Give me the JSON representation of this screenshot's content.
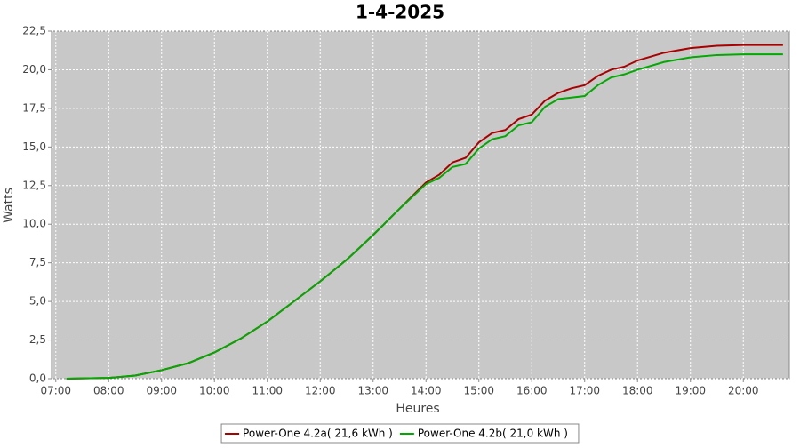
{
  "chart_data": {
    "type": "line",
    "title": "1-4-2025",
    "x_label": "Heures",
    "y_label": "Watts",
    "x": [
      7.2,
      8.0,
      8.5,
      9.0,
      9.5,
      10.0,
      10.5,
      11.0,
      11.5,
      12.0,
      12.5,
      13.0,
      13.5,
      14.0,
      14.25,
      14.5,
      14.75,
      15.0,
      15.25,
      15.5,
      15.75,
      16.0,
      16.25,
      16.5,
      16.75,
      17.0,
      17.25,
      17.5,
      17.75,
      18.0,
      18.5,
      19.0,
      19.5,
      20.0,
      20.75
    ],
    "series": [
      {
        "name": "Power-One 4.2a( 21,6 kWh )",
        "color": "#aa0000",
        "values": [
          0,
          0.05,
          0.2,
          0.55,
          1.0,
          1.7,
          2.6,
          3.7,
          5.0,
          6.3,
          7.7,
          9.3,
          11.0,
          12.7,
          13.2,
          14.0,
          14.3,
          15.3,
          15.9,
          16.1,
          16.8,
          17.1,
          18.0,
          18.5,
          18.8,
          19.0,
          19.6,
          20.0,
          20.2,
          20.6,
          21.1,
          21.4,
          21.55,
          21.6,
          21.6
        ]
      },
      {
        "name": "Power-One 4.2b( 21,0 kWh )",
        "color": "#00aa00",
        "values": [
          0,
          0.05,
          0.2,
          0.55,
          1.0,
          1.7,
          2.6,
          3.7,
          5.0,
          6.3,
          7.7,
          9.3,
          11.0,
          12.6,
          13.0,
          13.7,
          13.9,
          14.9,
          15.5,
          15.7,
          16.4,
          16.6,
          17.6,
          18.1,
          18.2,
          18.3,
          19.0,
          19.5,
          19.7,
          20.0,
          20.5,
          20.8,
          20.95,
          21.0,
          21.0
        ]
      }
    ],
    "xlim": [
      6.92,
      20.87
    ],
    "xticks": [
      {
        "value": 7,
        "label": "07:00"
      },
      {
        "value": 8,
        "label": "08:00"
      },
      {
        "value": 9,
        "label": "09:00"
      },
      {
        "value": 10,
        "label": "10:00"
      },
      {
        "value": 11,
        "label": "11:00"
      },
      {
        "value": 12,
        "label": "12:00"
      },
      {
        "value": 13,
        "label": "13:00"
      },
      {
        "value": 14,
        "label": "14:00"
      },
      {
        "value": 15,
        "label": "15:00"
      },
      {
        "value": 16,
        "label": "16:00"
      },
      {
        "value": 17,
        "label": "17:00"
      },
      {
        "value": 18,
        "label": "18:00"
      },
      {
        "value": 19,
        "label": "19:00"
      },
      {
        "value": 20,
        "label": "20:00"
      }
    ],
    "ylim": [
      0,
      22.5
    ],
    "yticks": [
      {
        "value": 0,
        "label": "0,0"
      },
      {
        "value": 2.5,
        "label": "2,5"
      },
      {
        "value": 5,
        "label": "5,0"
      },
      {
        "value": 7.5,
        "label": "7,5"
      },
      {
        "value": 10,
        "label": "10,0"
      },
      {
        "value": 12.5,
        "label": "12,5"
      },
      {
        "value": 15,
        "label": "15,0"
      },
      {
        "value": 17.5,
        "label": "17,5"
      },
      {
        "value": 20,
        "label": "20,0"
      },
      {
        "value": 22.5,
        "label": "22,5"
      }
    ],
    "grid": true,
    "plot_background": "#c8c8c8",
    "legend_position": "bottom"
  }
}
